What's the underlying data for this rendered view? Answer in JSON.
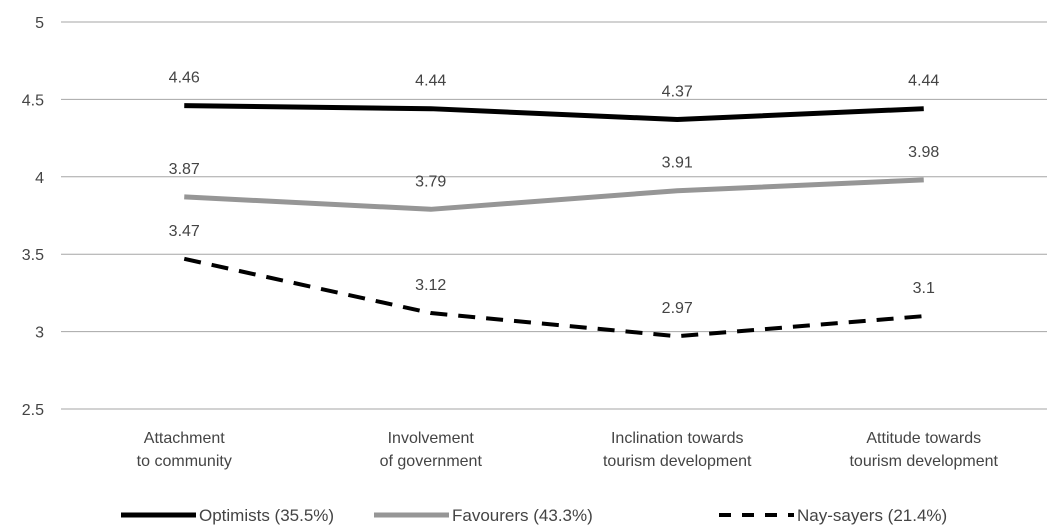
{
  "chart_data": {
    "type": "line",
    "categories": [
      [
        "Attachment",
        "to community"
      ],
      [
        "Involvement",
        "of government"
      ],
      [
        "Inclination towards",
        "tourism development"
      ],
      [
        "Attitude towards",
        "tourism development"
      ]
    ],
    "ylim": [
      2.5,
      5
    ],
    "yticks": [
      "5",
      "4.5",
      "4",
      "3.5",
      "3",
      "2.5"
    ],
    "grid": true,
    "legend_position": "bottom",
    "series": [
      {
        "name": "Optimists (35.5%)",
        "values": [
          4.46,
          4.44,
          4.37,
          4.44
        ],
        "labels": [
          "4.46",
          "4.44",
          "4.37",
          "4.44"
        ],
        "color": "#000000",
        "style": "solid"
      },
      {
        "name": "Favourers (43.3%)",
        "values": [
          3.87,
          3.79,
          3.91,
          3.98
        ],
        "labels": [
          "3.87",
          "3.79",
          "3.91",
          "3.98"
        ],
        "color": "#969696",
        "style": "solid"
      },
      {
        "name": "Nay-sayers (21.4%)",
        "values": [
          3.47,
          3.12,
          2.97,
          3.1
        ],
        "labels": [
          "3.47",
          "3.12",
          "2.97",
          "3.1"
        ],
        "color": "#000000",
        "style": "dashed"
      }
    ]
  }
}
